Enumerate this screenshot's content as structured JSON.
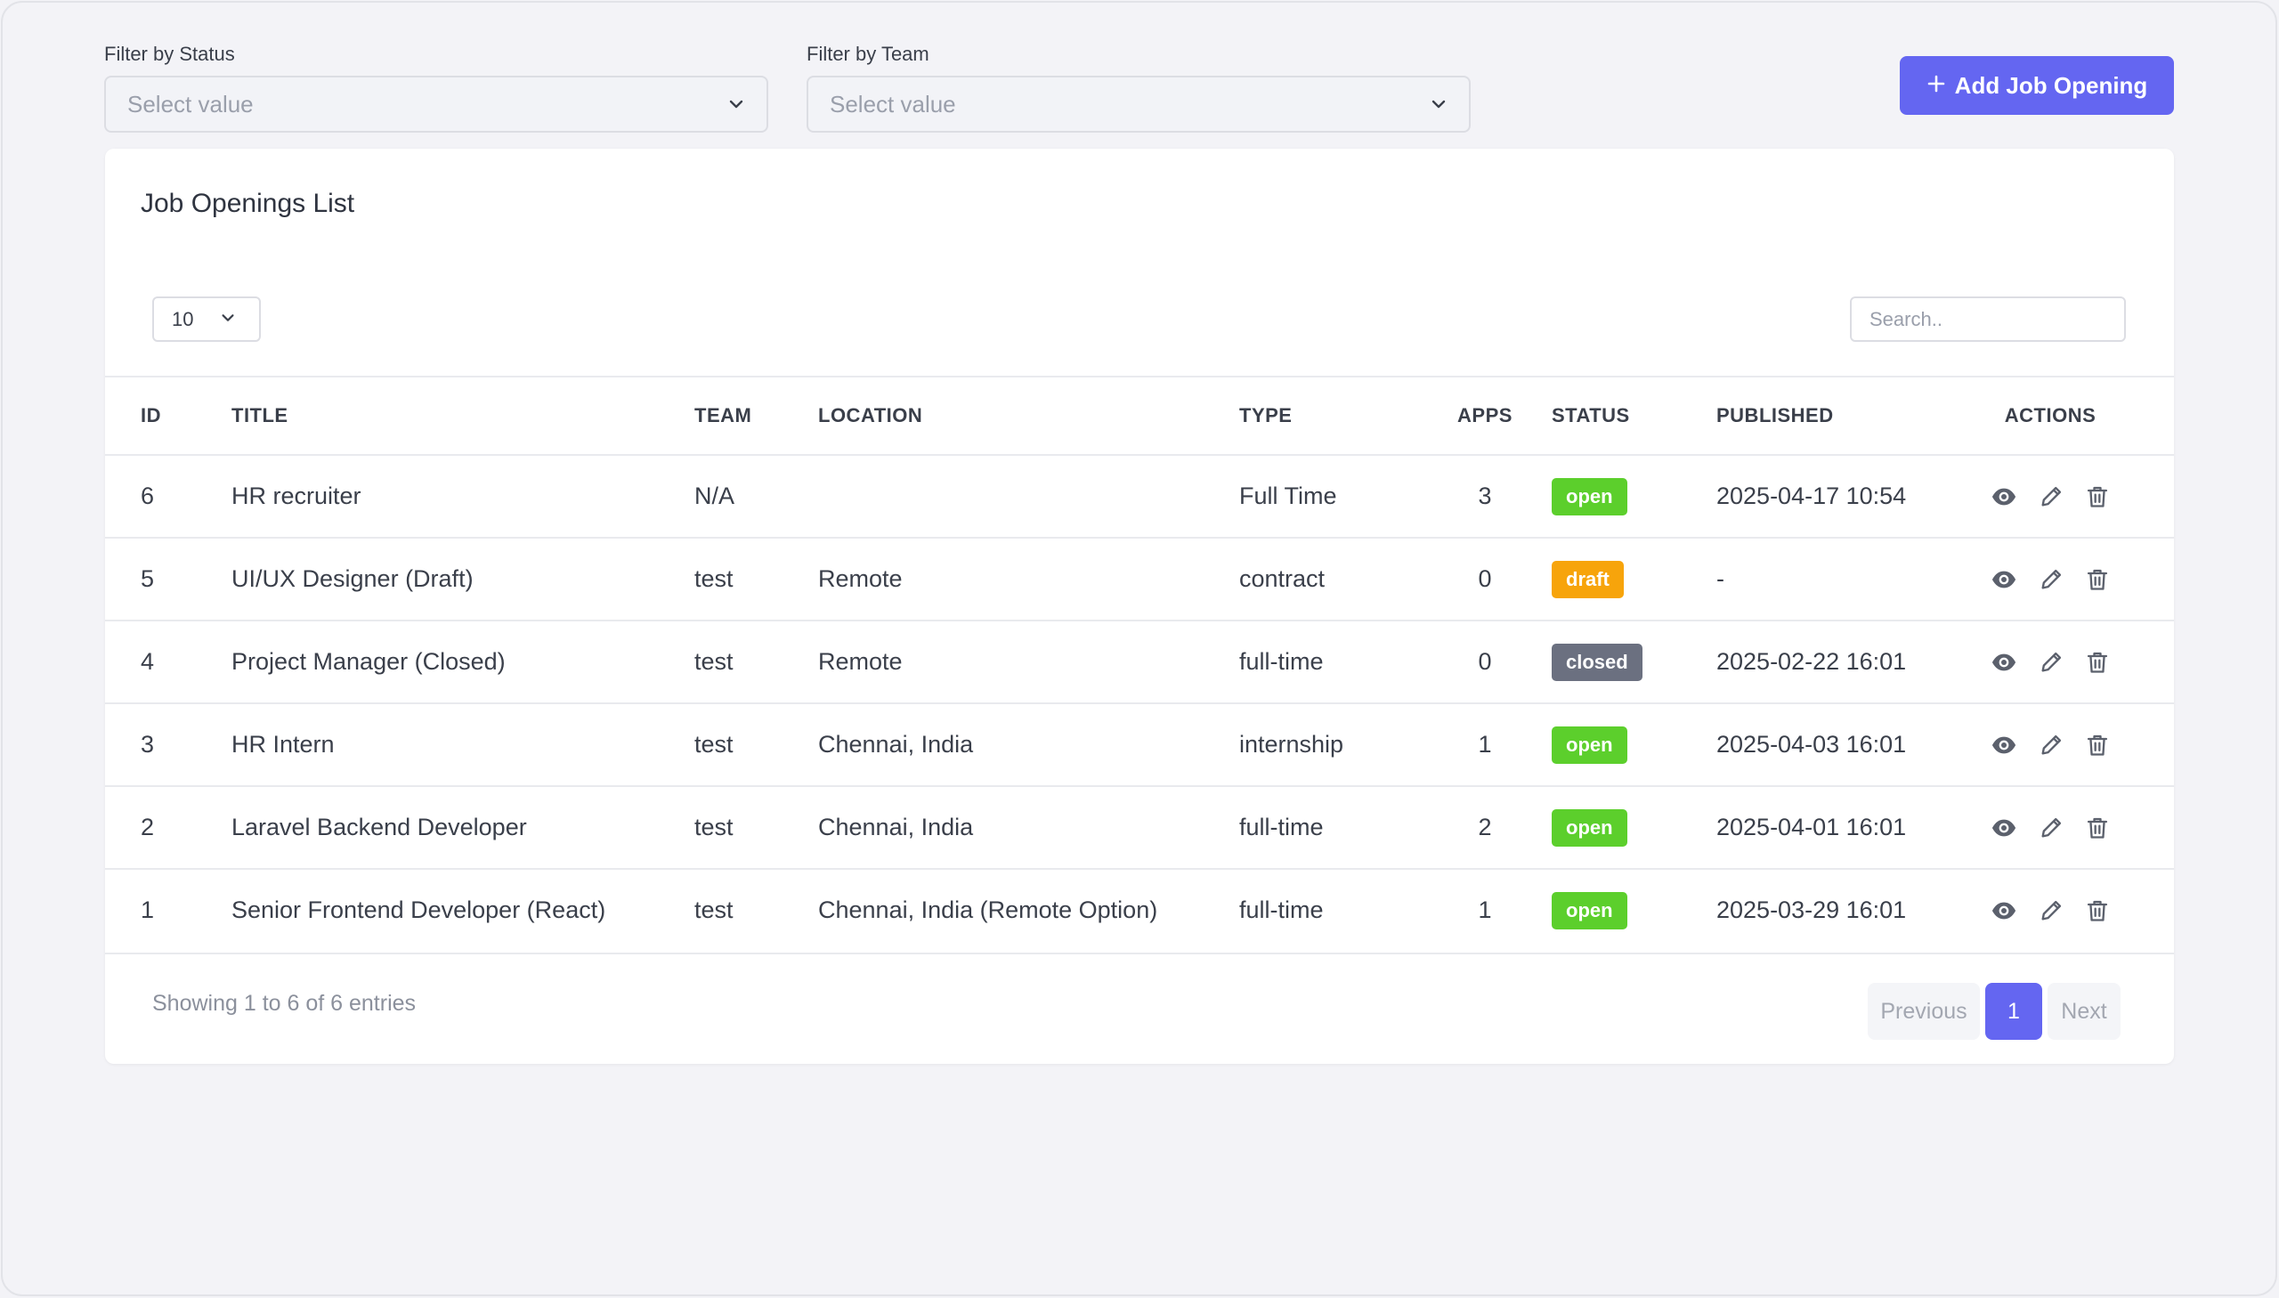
{
  "filters": {
    "status": {
      "label": "Filter by Status",
      "placeholder": "Select value"
    },
    "team": {
      "label": "Filter by Team",
      "placeholder": "Select value"
    }
  },
  "add_button": {
    "label": "Add Job Opening",
    "icon": "plus-icon"
  },
  "card": {
    "title": "Job Openings List",
    "page_length": "10",
    "search_placeholder": "Search.."
  },
  "table": {
    "headers": {
      "id": "ID",
      "title": "TITLE",
      "team": "TEAM",
      "location": "LOCATION",
      "type": "TYPE",
      "apps": "APPS",
      "status": "STATUS",
      "published": "PUBLISHED",
      "actions": "ACTIONS"
    },
    "rows": [
      {
        "id": "6",
        "title": "HR recruiter",
        "team": "N/A",
        "location": "",
        "type": "Full Time",
        "apps": "3",
        "status": "open",
        "published": "2025-04-17 10:54"
      },
      {
        "id": "5",
        "title": "UI/UX Designer (Draft)",
        "team": "test",
        "location": "Remote",
        "type": "contract",
        "apps": "0",
        "status": "draft",
        "published": "-"
      },
      {
        "id": "4",
        "title": "Project Manager (Closed)",
        "team": "test",
        "location": "Remote",
        "type": "full-time",
        "apps": "0",
        "status": "closed",
        "published": "2025-02-22 16:01"
      },
      {
        "id": "3",
        "title": "HR Intern",
        "team": "test",
        "location": "Chennai, India",
        "type": "internship",
        "apps": "1",
        "status": "open",
        "published": "2025-04-03 16:01"
      },
      {
        "id": "2",
        "title": "Laravel Backend Developer",
        "team": "test",
        "location": "Chennai, India",
        "type": "full-time",
        "apps": "2",
        "status": "open",
        "published": "2025-04-01 16:01"
      },
      {
        "id": "1",
        "title": "Senior Frontend Developer (React)",
        "team": "test",
        "location": "Chennai, India (Remote Option)",
        "type": "full-time",
        "apps": "1",
        "status": "open",
        "published": "2025-03-29 16:01"
      }
    ],
    "action_icons": [
      "eye-icon",
      "pencil-icon",
      "trash-icon"
    ]
  },
  "status_colors": {
    "open": "#5ccf2c",
    "draft": "#f7a40b",
    "closed": "#6b7080"
  },
  "accent_color": "#6466f1",
  "footer": {
    "info": "Showing 1 to 6 of 6 entries",
    "previous": "Previous",
    "current_page": "1",
    "next": "Next"
  }
}
